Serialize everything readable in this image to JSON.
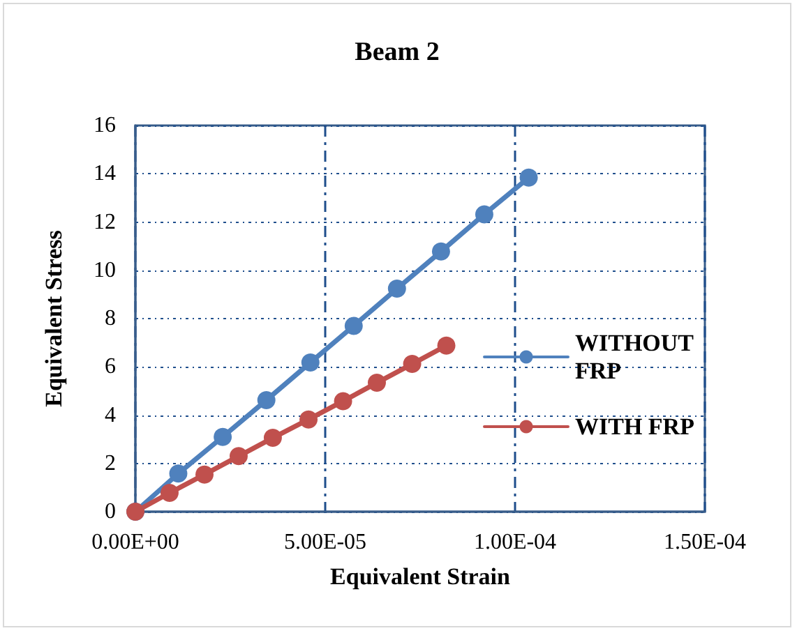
{
  "chart_data": {
    "type": "line",
    "title": "Beam 2",
    "xlabel": "Equivalent Strain",
    "ylabel": "Equivalent Stress",
    "xlim": [
      0,
      0.00015
    ],
    "xticks": [
      {
        "value": 0,
        "label": "0.00E+00"
      },
      {
        "value": 5e-05,
        "label": "5.00E-05"
      },
      {
        "value": 0.0001,
        "label": "1.00E-04"
      },
      {
        "value": 0.00015,
        "label": "1.50E-04"
      }
    ],
    "ylim": [
      0,
      16
    ],
    "yticks": [
      0,
      2,
      4,
      6,
      8,
      10,
      12,
      14,
      16
    ],
    "grid": true,
    "legend": "right",
    "marker": "circle",
    "line_style": "solid",
    "series": [
      {
        "name": "WITHOUT FRP",
        "color": "#4f81bd",
        "x": [
          0,
          1.13e-05,
          2.3e-05,
          3.45e-05,
          4.61e-05,
          5.75e-05,
          6.89e-05,
          8.05e-05,
          9.19e-05,
          0.0001036
        ],
        "values": [
          0,
          1.58,
          3.1,
          4.62,
          6.18,
          7.7,
          9.24,
          10.78,
          12.32,
          13.84
        ]
      },
      {
        "name": "WITH FRP",
        "color": "#c0504d",
        "x": [
          0,
          9e-06,
          1.82e-05,
          2.72e-05,
          3.62e-05,
          4.56e-05,
          5.47e-05,
          6.36e-05,
          7.29e-05,
          8.19e-05
        ],
        "values": [
          0,
          0.78,
          1.54,
          2.3,
          3.06,
          3.82,
          4.58,
          5.34,
          6.12,
          6.88
        ]
      }
    ]
  }
}
